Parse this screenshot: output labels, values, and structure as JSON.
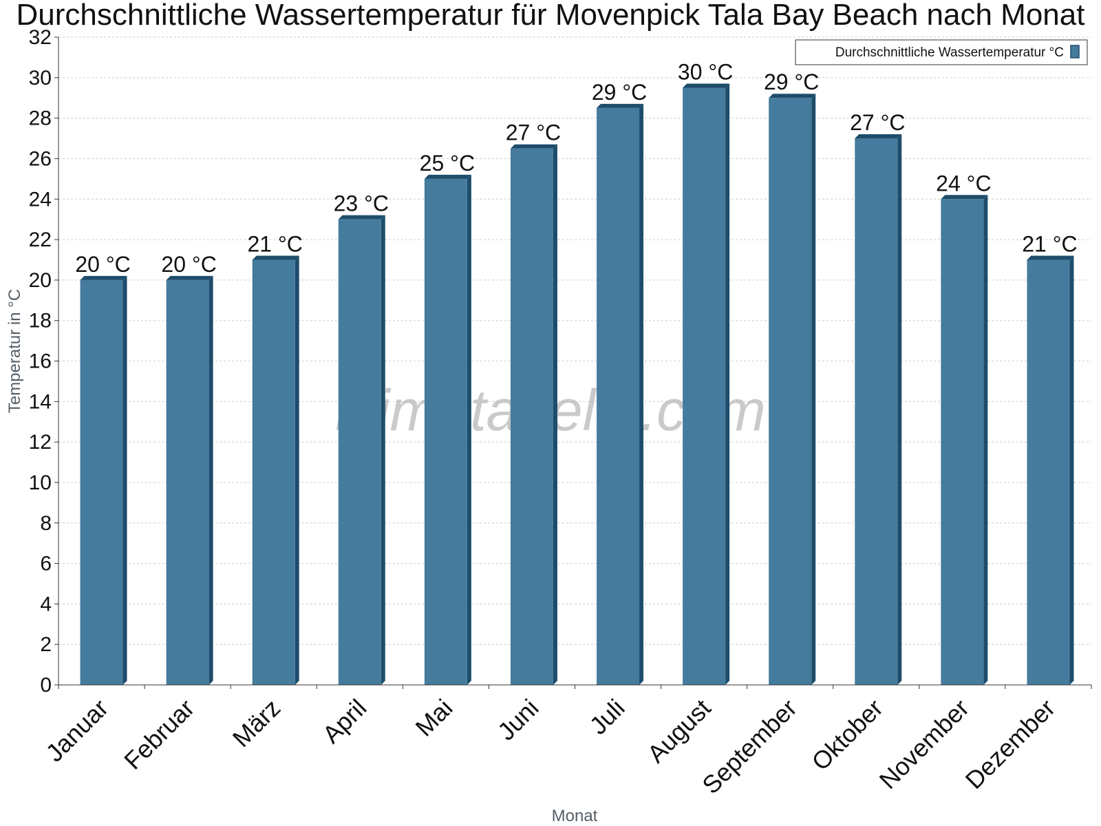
{
  "watermark": "klimatabelle.com",
  "colors": {
    "bar": "#457b9d",
    "bar_dark": "#1e4d6b",
    "grid": "#cccccc",
    "axis": "#333333"
  },
  "chart_data": {
    "type": "bar",
    "title": "Durchschnittliche Wassertemperatur für Movenpick Tala Bay Beach nach Monat",
    "xlabel": "Monat",
    "ylabel": "Temperatur in °C",
    "ylim": [
      0,
      32
    ],
    "yticks": [
      0,
      2,
      4,
      6,
      8,
      10,
      12,
      14,
      16,
      18,
      20,
      22,
      24,
      26,
      28,
      30,
      32
    ],
    "grid": true,
    "legend_position": "top-right",
    "categories": [
      "Januar",
      "Februar",
      "März",
      "April",
      "Mai",
      "Juni",
      "Juli",
      "August",
      "September",
      "Oktober",
      "November",
      "Dezember"
    ],
    "series": [
      {
        "name": "Durchschnittliche Wassertemperatur °C",
        "values": [
          20,
          20,
          21,
          23,
          25,
          26.5,
          28.5,
          29.5,
          29,
          27,
          24,
          21
        ],
        "labels": [
          "20 °C",
          "20 °C",
          "21 °C",
          "23 °C",
          "25 °C",
          "27 °C",
          "29 °C",
          "30 °C",
          "29 °C",
          "27 °C",
          "24 °C",
          "21 °C"
        ]
      }
    ]
  }
}
